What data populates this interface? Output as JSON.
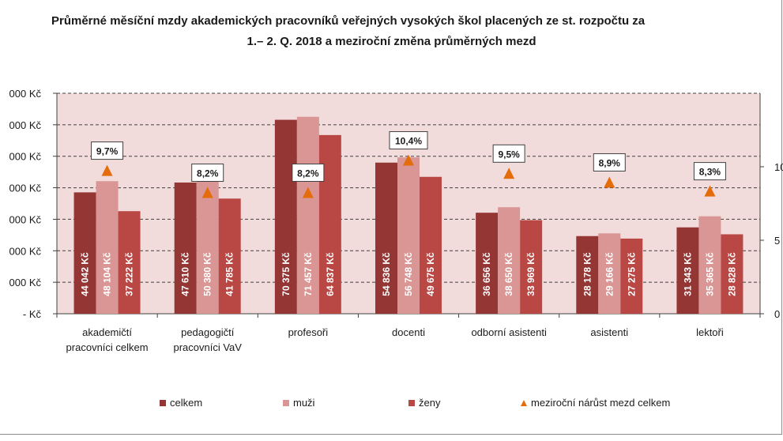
{
  "title_line1": "Průměrné měsíční mzdy akademických pracovníků veřejných vysokých škol placených ze st. rozpočtu za",
  "title_line2": "1.– 2. Q. 2018  a meziroční změna průměrných mezd",
  "colors": {
    "plot_background": "#f2dcdb",
    "celkem": "#943634",
    "muzi": "#d99694",
    "zeny": "#b94845",
    "triangle": "#e46c0a",
    "gridline": "#404040"
  },
  "chart_data": {
    "type": "bar",
    "categories": [
      [
        "akademičtí",
        "pracovníci celkem"
      ],
      [
        "pedagogičtí",
        "pracovníci VaV"
      ],
      [
        "profesoři"
      ],
      [
        "docenti"
      ],
      [
        "odborní asistenti"
      ],
      [
        "asistenti"
      ],
      [
        "lektoři"
      ]
    ],
    "series": [
      {
        "name": "celkem",
        "values": [
          44042,
          47610,
          70375,
          54836,
          36656,
          28178,
          31343
        ],
        "labels": [
          "44 042 Kč",
          "47 610 Kč",
          "70 375 Kč",
          "54 836 Kč",
          "36 656 Kč",
          "28 178 Kč",
          "31 343 Kč"
        ]
      },
      {
        "name": "muži",
        "values": [
          48104,
          50380,
          71457,
          56748,
          38650,
          29166,
          35365
        ],
        "labels": [
          "48 104 Kč",
          "50 380 Kč",
          "71 457 Kč",
          "56 748 Kč",
          "38 650 Kč",
          "29 166 Kč",
          "35 365 Kč"
        ]
      },
      {
        "name": "ženy",
        "values": [
          37222,
          41785,
          64837,
          49675,
          33969,
          27275,
          28828
        ],
        "labels": [
          "37 222 Kč",
          "41 785 Kč",
          "64 837 Kč",
          "49 675 Kč",
          "33 969 Kč",
          "27 275 Kč",
          "28 828 Kč"
        ]
      }
    ],
    "secondary_series": {
      "name": "meziroční nárůst mezd celkem",
      "values": [
        9.7,
        8.2,
        8.2,
        10.4,
        9.5,
        8.9,
        8.3
      ],
      "labels": [
        "9,7%",
        "8,2%",
        "8,2%",
        "10,4%",
        "9,5%",
        "8,9%",
        "8,3%"
      ]
    },
    "y_ticks": [
      "000 Kč",
      "000 Kč",
      "000 Kč",
      "000 Kč",
      "000 Kč",
      "000 Kč",
      "000 Kč",
      "-   Kč"
    ],
    "ylim": [
      0,
      80000
    ],
    "y2_ticks": [
      "0",
      "5",
      "10"
    ],
    "y2lim": [
      0,
      15
    ],
    "legend": [
      "celkem",
      "muži",
      "ženy",
      "meziroční nárůst mezd celkem"
    ],
    "legend_position": "bottom",
    "grid": true
  }
}
